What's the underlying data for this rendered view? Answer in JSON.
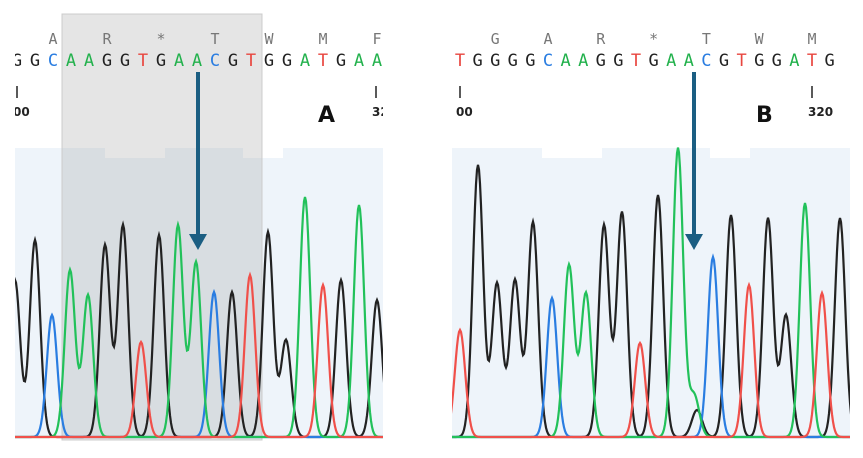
{
  "panels": [
    {
      "label": "A",
      "amino_acids": [
        "A",
        "R",
        "*",
        "T",
        "W",
        "M",
        "F"
      ],
      "sequence": [
        "G",
        "G",
        "C",
        "A",
        "A",
        "G",
        "G",
        "T",
        "G",
        "A",
        "A",
        "C",
        "G",
        "T",
        "G",
        "G",
        "A",
        "T",
        "G",
        "A",
        "A"
      ],
      "positions": [
        "00",
        "32"
      ]
    },
    {
      "label": "B",
      "amino_acids": [
        "G",
        "A",
        "R",
        "*",
        "T",
        "W",
        "M"
      ],
      "sequence": [
        "T",
        "G",
        "G",
        "G",
        "G",
        "C",
        "A",
        "A",
        "G",
        "G",
        "T",
        "G",
        "A",
        "A",
        "C",
        "G",
        "T",
        "G",
        "G",
        "A",
        "T",
        "G"
      ],
      "positions": [
        "00",
        "320"
      ]
    }
  ]
}
